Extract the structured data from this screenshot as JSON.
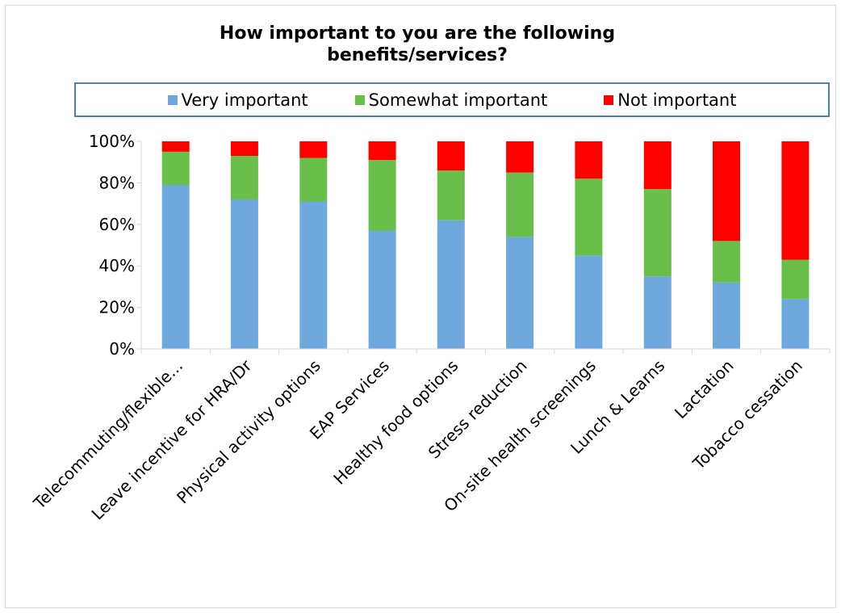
{
  "chart_data": {
    "type": "bar",
    "stacked": true,
    "title": "How important to you are the following benefits/services?",
    "title_lines": [
      "How important to you are the following",
      "benefits/services?"
    ],
    "categories": [
      "Telecommuting/flexible...",
      "Leave incentive for HRA/Dr",
      "Physical activity options",
      "EAP Services",
      "Healthy food options",
      "Stress reduction",
      "On-site health screenings",
      "Lunch & Learns",
      "Lactation",
      "Tobacco cessation"
    ],
    "series": [
      {
        "name": "Very important",
        "color": "#6fa8dc",
        "values": [
          79,
          72,
          71,
          57,
          62,
          54,
          45,
          35,
          32,
          24
        ]
      },
      {
        "name": "Somewhat important",
        "color": "#6abf4b",
        "values": [
          16,
          21,
          21,
          34,
          24,
          31,
          37,
          42,
          20,
          19
        ]
      },
      {
        "name": "Not important",
        "color": "#ff0000",
        "values": [
          5,
          7,
          8,
          9,
          14,
          15,
          18,
          23,
          48,
          57
        ]
      }
    ],
    "y_ticks": [
      "0%",
      "20%",
      "40%",
      "60%",
      "80%",
      "100%"
    ],
    "ylim": [
      0,
      100
    ],
    "xlabel": "",
    "ylabel": "",
    "legend_position": "top",
    "grid": false
  }
}
